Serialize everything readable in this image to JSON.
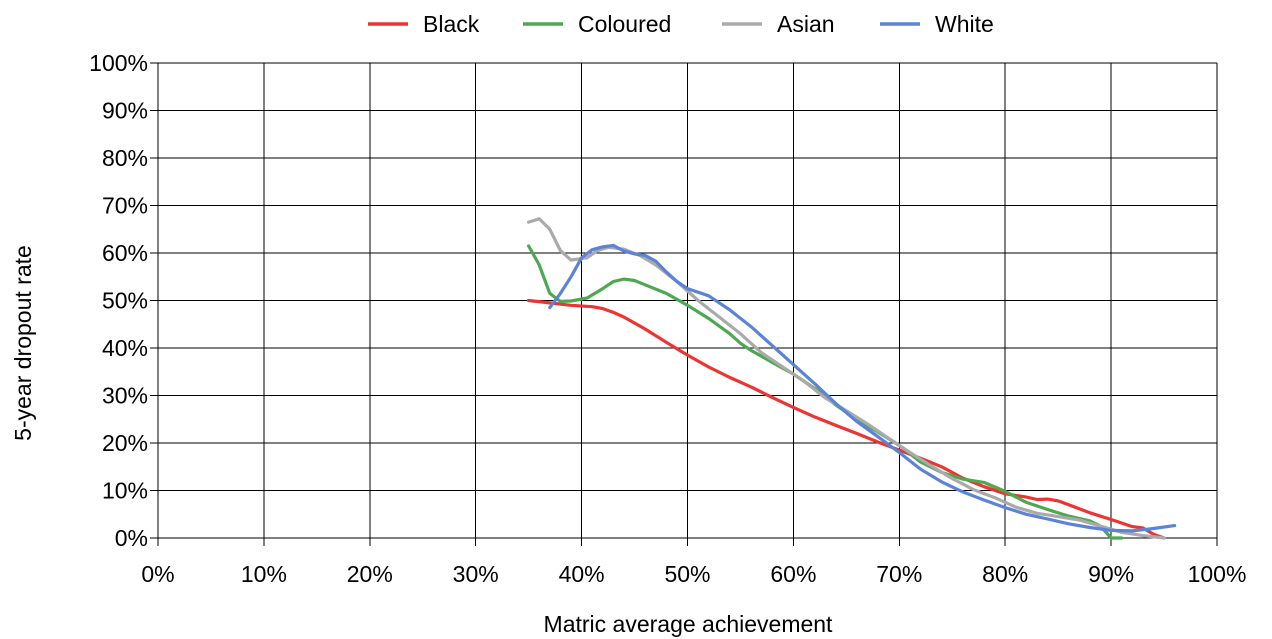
{
  "chart_data": {
    "type": "line",
    "xlabel": "Matric average achievement",
    "ylabel": "5-year dropout rate",
    "xlim": [
      0,
      100
    ],
    "ylim": [
      0,
      100
    ],
    "x_unit": "%",
    "y_unit": "%",
    "grid": true,
    "legend_position": "top",
    "x_ticks": [
      "0%",
      "10%",
      "20%",
      "30%",
      "40%",
      "50%",
      "60%",
      "70%",
      "80%",
      "90%",
      "100%"
    ],
    "y_ticks": [
      "0%",
      "10%",
      "20%",
      "30%",
      "40%",
      "50%",
      "60%",
      "70%",
      "80%",
      "90%",
      "100%"
    ],
    "series": [
      {
        "name": "Black",
        "color": "#ee3333",
        "points": [
          [
            35,
            50
          ],
          [
            37,
            49.5
          ],
          [
            39,
            49
          ],
          [
            41,
            48.7
          ],
          [
            42,
            48.3
          ],
          [
            43,
            47.5
          ],
          [
            44,
            46.5
          ],
          [
            46,
            44
          ],
          [
            48,
            41.2
          ],
          [
            50,
            38.5
          ],
          [
            52,
            36
          ],
          [
            54,
            33.8
          ],
          [
            56,
            31.8
          ],
          [
            58,
            29.6
          ],
          [
            60,
            27.5
          ],
          [
            62,
            25.5
          ],
          [
            64,
            23.7
          ],
          [
            66,
            22
          ],
          [
            68,
            20.2
          ],
          [
            70,
            18.5
          ],
          [
            72,
            16.8
          ],
          [
            74,
            15
          ],
          [
            76,
            12.6
          ],
          [
            78,
            10.8
          ],
          [
            80,
            9.3
          ],
          [
            82,
            8.6
          ],
          [
            83,
            8.1
          ],
          [
            84,
            8.2
          ],
          [
            85,
            7.8
          ],
          [
            86,
            7
          ],
          [
            88,
            5.3
          ],
          [
            90,
            3.9
          ],
          [
            92,
            2.4
          ],
          [
            93,
            2.1
          ],
          [
            94,
            0.8
          ],
          [
            95,
            0
          ]
        ]
      },
      {
        "name": "Coloured",
        "color": "#4da851",
        "points": [
          [
            35,
            61.5
          ],
          [
            36,
            57.5
          ],
          [
            37,
            51.5
          ],
          [
            38,
            49.8
          ],
          [
            39,
            49.9
          ],
          [
            40.5,
            50.5
          ],
          [
            42,
            52.5
          ],
          [
            43,
            54
          ],
          [
            44,
            54.5
          ],
          [
            45,
            54.2
          ],
          [
            46,
            53.3
          ],
          [
            48,
            51.5
          ],
          [
            50,
            49
          ],
          [
            52,
            46.2
          ],
          [
            54,
            43
          ],
          [
            55,
            41
          ],
          [
            56,
            39.5
          ],
          [
            58,
            37
          ],
          [
            60,
            34.5
          ],
          [
            62,
            31.5
          ],
          [
            64,
            28
          ],
          [
            66,
            25
          ],
          [
            68,
            22.3
          ],
          [
            70,
            19.5
          ],
          [
            72,
            16
          ],
          [
            74,
            13.8
          ],
          [
            76,
            12.4
          ],
          [
            78,
            11.7
          ],
          [
            80,
            9.8
          ],
          [
            82,
            7.5
          ],
          [
            84,
            6
          ],
          [
            86,
            4.6
          ],
          [
            88,
            3.6
          ],
          [
            89,
            2.5
          ],
          [
            90,
            0
          ],
          [
            91,
            0
          ]
        ]
      },
      {
        "name": "Asian",
        "color": "#aaaaaa",
        "points": [
          [
            35,
            66.5
          ],
          [
            36,
            67.2
          ],
          [
            37,
            65
          ],
          [
            38,
            60.5
          ],
          [
            39,
            58.5
          ],
          [
            40.5,
            59
          ],
          [
            41.5,
            60.5
          ],
          [
            42.5,
            61.2
          ],
          [
            44,
            60.8
          ],
          [
            45.5,
            59.5
          ],
          [
            47,
            57.5
          ],
          [
            49,
            54
          ],
          [
            51,
            50
          ],
          [
            53,
            46.5
          ],
          [
            55,
            43
          ],
          [
            57,
            39
          ],
          [
            59,
            36
          ],
          [
            61,
            33
          ],
          [
            63,
            29.5
          ],
          [
            65,
            26.8
          ],
          [
            67,
            24
          ],
          [
            69,
            21
          ],
          [
            71,
            18
          ],
          [
            73,
            15.2
          ],
          [
            75,
            12.5
          ],
          [
            77,
            10.2
          ],
          [
            79,
            8.5
          ],
          [
            81,
            6.5
          ],
          [
            83,
            5.2
          ],
          [
            85,
            4.5
          ],
          [
            87,
            3.8
          ],
          [
            89,
            2.5
          ],
          [
            91,
            1.2
          ],
          [
            93,
            0.5
          ],
          [
            95,
            0
          ]
        ]
      },
      {
        "name": "White",
        "color": "#5b84d8",
        "points": [
          [
            37,
            48.5
          ],
          [
            38,
            51.5
          ],
          [
            39,
            55
          ],
          [
            40,
            59
          ],
          [
            41,
            60.7
          ],
          [
            42,
            61.3
          ],
          [
            43,
            61.6
          ],
          [
            44,
            60.4
          ],
          [
            45,
            59.8
          ],
          [
            46,
            59.5
          ],
          [
            47,
            58.3
          ],
          [
            48,
            56
          ],
          [
            49,
            54
          ],
          [
            50,
            52.5
          ],
          [
            52,
            51
          ],
          [
            54,
            48
          ],
          [
            56,
            44.5
          ],
          [
            58,
            40.5
          ],
          [
            60,
            36.5
          ],
          [
            62,
            32.5
          ],
          [
            64,
            28.3
          ],
          [
            66,
            24.5
          ],
          [
            68,
            21.3
          ],
          [
            70,
            18
          ],
          [
            72,
            14.5
          ],
          [
            74,
            11.8
          ],
          [
            76,
            9.7
          ],
          [
            78,
            8
          ],
          [
            80,
            6.4
          ],
          [
            82,
            5
          ],
          [
            84,
            4
          ],
          [
            86,
            3
          ],
          [
            88,
            2.2
          ],
          [
            90,
            1.6
          ],
          [
            92,
            1.5
          ],
          [
            94,
            2
          ],
          [
            96,
            2.6
          ]
        ]
      }
    ]
  }
}
